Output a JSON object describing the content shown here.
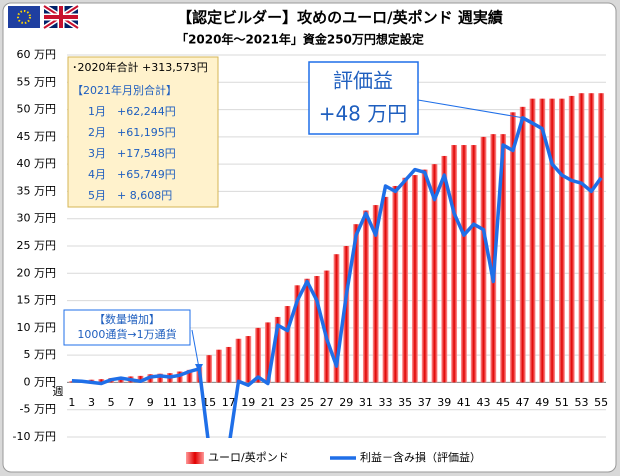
{
  "chart_data": {
    "type": "bar_line",
    "title": "【認定ビルダー】攻めのユーロ/英ポンド 週実績",
    "subtitle": "「2020年〜2021年」資金250万円想定設定",
    "x_unit": "週",
    "categories": [
      1,
      null,
      3,
      null,
      5,
      null,
      7,
      null,
      9,
      null,
      11,
      null,
      13,
      null,
      15,
      null,
      17,
      null,
      19,
      null,
      21,
      null,
      23,
      null,
      25,
      null,
      27,
      null,
      29,
      null,
      31,
      null,
      33,
      null,
      35,
      null,
      37,
      null,
      39,
      null,
      41,
      null,
      43,
      null,
      45,
      null,
      47,
      null,
      49,
      null,
      51,
      null,
      53,
      null,
      55
    ],
    "ylim": [
      -10,
      60
    ],
    "yticks": [
      {
        "value": 60,
        "label": "60 万円"
      },
      {
        "value": 55,
        "label": "55 万円"
      },
      {
        "value": 50,
        "label": "50 万円"
      },
      {
        "value": 45,
        "label": "45 万円"
      },
      {
        "value": 40,
        "label": "40 万円"
      },
      {
        "value": 35,
        "label": "35 万円"
      },
      {
        "value": 30,
        "label": "30 万円"
      },
      {
        "value": 25,
        "label": "25 万円"
      },
      {
        "value": 20,
        "label": "20 万円"
      },
      {
        "value": 15,
        "label": "15 万円"
      },
      {
        "value": 10,
        "label": "10 万円"
      },
      {
        "value": 5,
        "label": "5 万円"
      },
      {
        "value": 0,
        "label": "0 万円"
      },
      {
        "value": -5,
        "label": "-5 万円"
      },
      {
        "value": -10,
        "label": "-10 万円"
      }
    ],
    "series": [
      {
        "name": "ユーロ/英ポンド",
        "kind": "bar",
        "color": "#e00000",
        "values": [
          0.2,
          0.3,
          0.5,
          0.6,
          0.8,
          1.0,
          1.1,
          1.2,
          1.5,
          1.6,
          1.7,
          2.0,
          2.3,
          2.8,
          5.0,
          6.0,
          6.5,
          8.0,
          8.5,
          10.0,
          11.0,
          12.0,
          14.0,
          17.8,
          19.0,
          19.5,
          20.5,
          23.5,
          25.0,
          29.0,
          31.5,
          32.5,
          34.0,
          36.0,
          37.5,
          38.0,
          39.0,
          40.0,
          41.5,
          43.5,
          43.5,
          43.5,
          45.0,
          45.5,
          45.5,
          49.5,
          50.5,
          52,
          52,
          52,
          52,
          52.5,
          53,
          53,
          53
        ]
      },
      {
        "name": "利益－含み損（評価益）",
        "kind": "line",
        "color": "#1f6fe8",
        "values": [
          0.3,
          0.2,
          0,
          -0.2,
          0.5,
          0.8,
          0.5,
          0.2,
          1.0,
          1.2,
          1.0,
          1.3,
          2.0,
          2.5,
          -12,
          -12,
          -12,
          0.2,
          -0.5,
          1.0,
          -0.2,
          10.5,
          9.5,
          15,
          18.5,
          15,
          8,
          3,
          16,
          27,
          31,
          27,
          36,
          35,
          37,
          39,
          38.5,
          33.5,
          38,
          31,
          27,
          29,
          28,
          18.5,
          43.5,
          42.5,
          48.5,
          47.5,
          46.5,
          40,
          38,
          37,
          36.5,
          35,
          37.5
        ]
      }
    ],
    "summary": [
      "･2020年合計 +313,573円",
      "【2021年月別合計】",
      "1月　+62,244円",
      "2月　+61,195円",
      "3月　+17,548円",
      "4月　+65,749円",
      "5月　+ 8,608円"
    ],
    "callout": [
      "評価益",
      "+48 万円"
    ],
    "note": [
      "【数量増加】",
      "1000通貨→1万通貨"
    ]
  }
}
